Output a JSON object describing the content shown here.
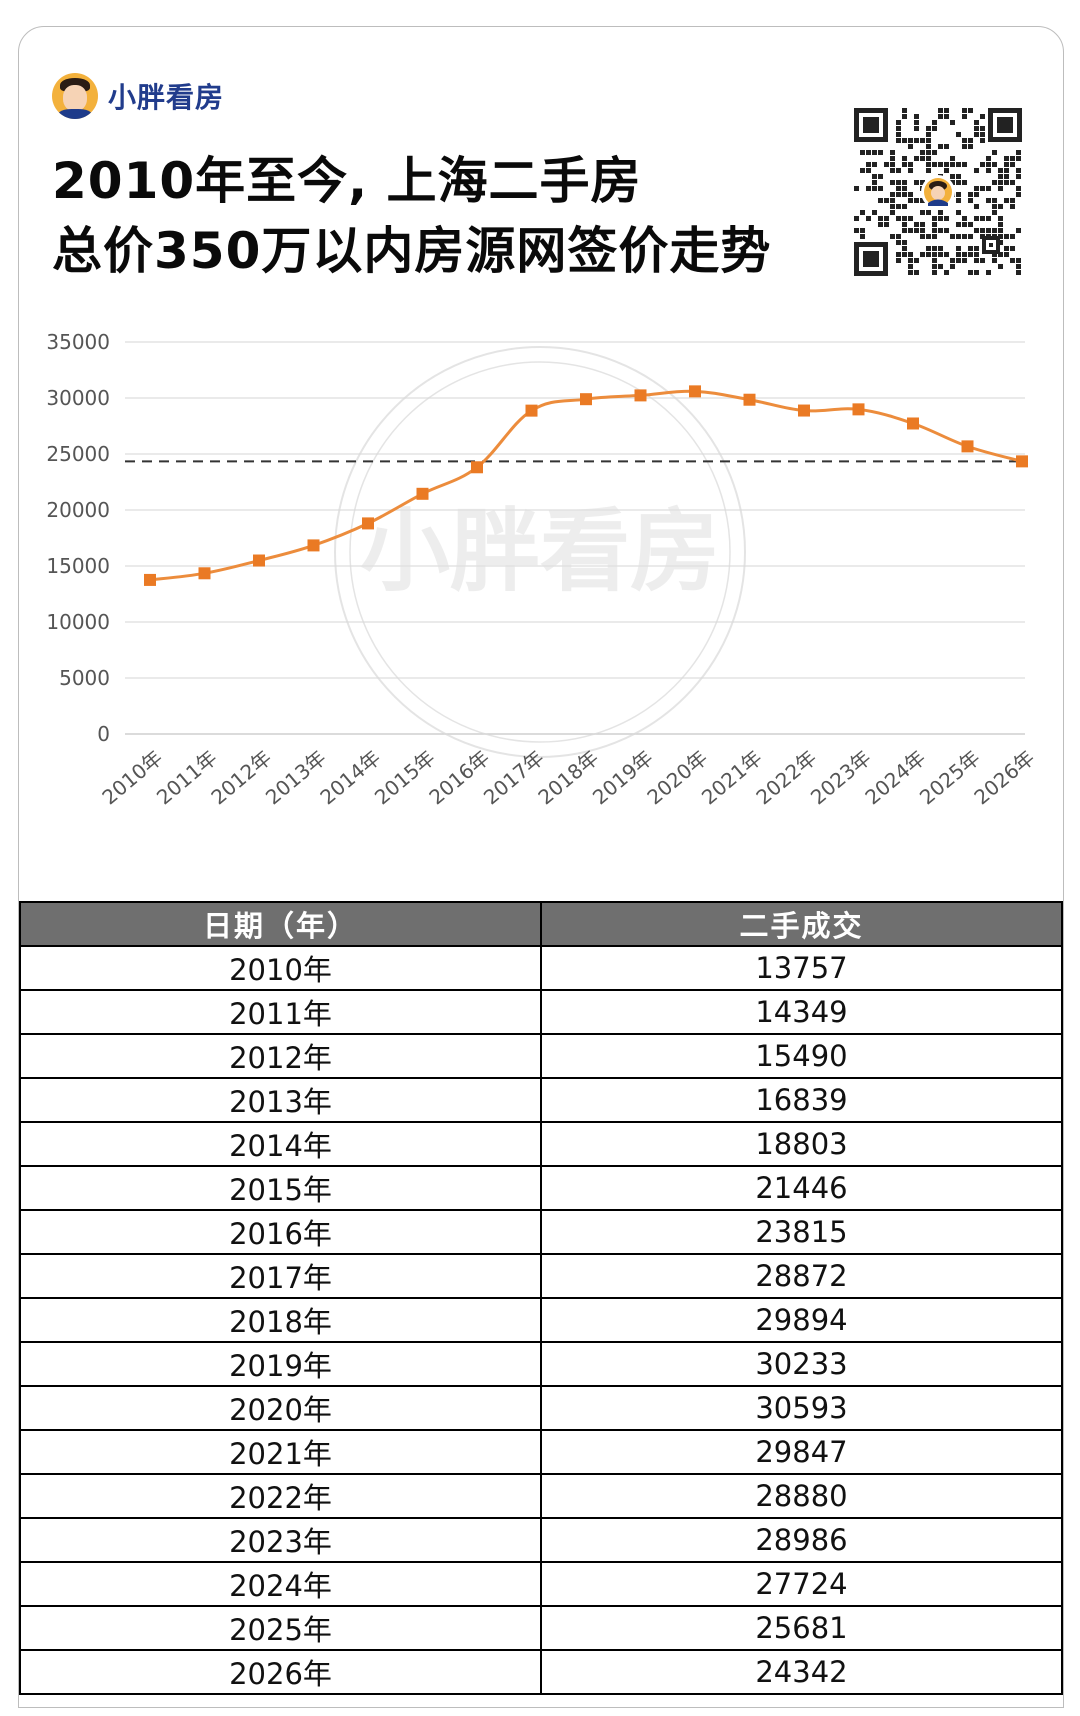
{
  "brand": {
    "name": "小胖看房"
  },
  "title": {
    "line1": "2010年至今, 上海二手房",
    "line2": "总价350万以内房源网签价走势"
  },
  "watermark": "小胖看房",
  "colors": {
    "line": "#ec8c3c",
    "marker": "#ea7a24",
    "grid": "#e3e3e3",
    "header_bg": "#6f6f6f"
  },
  "chart_data": {
    "type": "line",
    "categories": [
      "2010年",
      "2011年",
      "2012年",
      "2013年",
      "2014年",
      "2015年",
      "2016年",
      "2017年",
      "2018年",
      "2019年",
      "2020年",
      "2021年",
      "2022年",
      "2023年",
      "2024年",
      "2025年",
      "2026年"
    ],
    "series": [
      {
        "values": [
          13757,
          14349,
          15490,
          16839,
          18803,
          21446,
          23815,
          28872,
          29894,
          30233,
          30593,
          29847,
          28880,
          28986,
          27724,
          25681,
          24342
        ]
      }
    ],
    "yticks": [
      "0",
      "5000",
      "10000",
      "15000",
      "20000",
      "25000",
      "30000",
      "35000"
    ],
    "ylim": [
      0,
      35000
    ],
    "reference_line": 24342,
    "grid": true,
    "legend": "none"
  },
  "table": {
    "headers": [
      "日期（年）",
      "二手成交"
    ],
    "rows": [
      [
        "2010年",
        "13757"
      ],
      [
        "2011年",
        "14349"
      ],
      [
        "2012年",
        "15490"
      ],
      [
        "2013年",
        "16839"
      ],
      [
        "2014年",
        "18803"
      ],
      [
        "2015年",
        "21446"
      ],
      [
        "2016年",
        "23815"
      ],
      [
        "2017年",
        "28872"
      ],
      [
        "2018年",
        "29894"
      ],
      [
        "2019年",
        "30233"
      ],
      [
        "2020年",
        "30593"
      ],
      [
        "2021年",
        "29847"
      ],
      [
        "2022年",
        "28880"
      ],
      [
        "2023年",
        "28986"
      ],
      [
        "2024年",
        "27724"
      ],
      [
        "2025年",
        "25681"
      ],
      [
        "2026年",
        "24342"
      ]
    ]
  }
}
